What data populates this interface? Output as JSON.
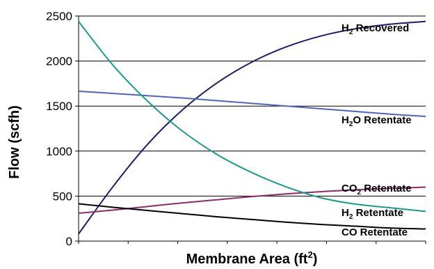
{
  "chart_data": {
    "type": "line",
    "title": "",
    "xlabel": "Membrane Area (ft",
    "xlabel_sup": "2",
    "xlabel_end": ")",
    "ylabel": "Flow (scfh)",
    "ylim": [
      0,
      2500
    ],
    "yticks": [
      0,
      500,
      1000,
      1500,
      2000,
      2500
    ],
    "ytick_labels": [
      "0",
      "500",
      "1000",
      "1500",
      "2000",
      "2500"
    ],
    "xlim": [
      0,
      1
    ],
    "grid": "horizontal",
    "legend": "inline-right",
    "x": [
      0,
      0.1,
      0.2,
      0.3,
      0.4,
      0.5,
      0.6,
      0.7,
      0.8,
      0.9,
      1.0
    ],
    "series": [
      {
        "name": "H2 Recovered",
        "label_parts": [
          "H",
          "2",
          " Recovered"
        ],
        "color": "#1f1a6b",
        "values": [
          80,
          610,
          1080,
          1460,
          1760,
          1990,
          2160,
          2280,
          2360,
          2410,
          2440
        ]
      },
      {
        "name": "H2O Retentate",
        "label_parts": [
          "H",
          "2",
          "O Retentate"
        ],
        "color": "#4a68b8",
        "values": [
          1665,
          1640,
          1615,
          1590,
          1560,
          1530,
          1500,
          1470,
          1440,
          1410,
          1385
        ]
      },
      {
        "name": "CO2 Retentate",
        "label_parts": [
          "CO",
          "2",
          " Retentate"
        ],
        "color": "#8e2a6c",
        "values": [
          310,
          345,
          385,
          425,
          460,
          495,
          525,
          550,
          570,
          585,
          600
        ]
      },
      {
        "name": "H2 Retentate",
        "label_parts": [
          "H",
          "2",
          " Retentate"
        ],
        "color": "#1a9a8a",
        "values": [
          2440,
          1950,
          1550,
          1220,
          960,
          760,
          600,
          480,
          410,
          370,
          330
        ]
      },
      {
        "name": "CO Retentate",
        "label_parts": [
          "CO Retentate",
          "",
          ""
        ],
        "color": "#000000",
        "values": [
          415,
          375,
          340,
          305,
          270,
          240,
          210,
          185,
          165,
          145,
          135
        ]
      }
    ]
  }
}
